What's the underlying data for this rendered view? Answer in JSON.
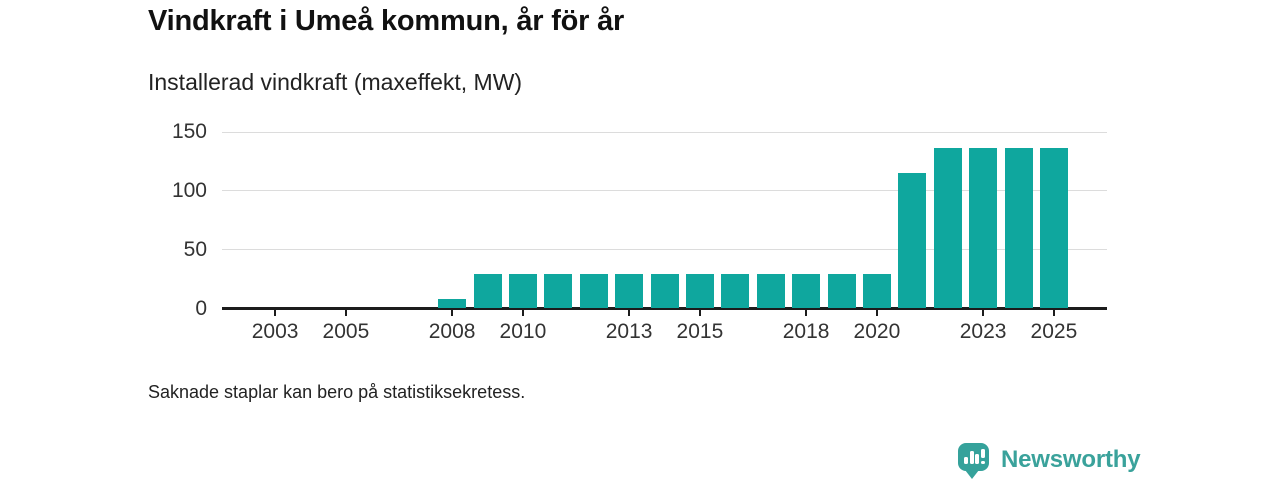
{
  "header": {
    "title": "Vindkraft i Umeå kommun, år för år",
    "subtitle": "Installerad vindkraft (maxeffekt, MW)"
  },
  "chart_data": {
    "type": "bar",
    "title": "Vindkraft i Umeå kommun, år för år",
    "subtitle": "Installerad vindkraft (maxeffekt, MW)",
    "unit": "MW",
    "categories": [
      2002,
      2003,
      2004,
      2005,
      2006,
      2007,
      2008,
      2009,
      2010,
      2011,
      2012,
      2013,
      2014,
      2015,
      2016,
      2017,
      2018,
      2019,
      2020,
      2021,
      2022,
      2023,
      2024,
      2025,
      2026
    ],
    "values": [
      null,
      null,
      null,
      null,
      null,
      null,
      8,
      29,
      29,
      29,
      29,
      29,
      29,
      29,
      29,
      29,
      29,
      29,
      29,
      115,
      136,
      136,
      136,
      136,
      null
    ],
    "x_tick_labels": [
      "2003",
      "2005",
      "2008",
      "2010",
      "2013",
      "2015",
      "2018",
      "2020",
      "2023",
      "2025"
    ],
    "y_ticks": [
      0,
      50,
      100,
      150
    ],
    "ylim": [
      0,
      150
    ],
    "grid": "horizontal-light",
    "legend": "none",
    "bar_color": "#0fa79e"
  },
  "footnote": {
    "text": "Saknade staplar kan bero på statistiksekretess."
  },
  "branding": {
    "logo_text": "Newsworthy",
    "logo_icon": "bar-chart-speech-bubble-icon"
  },
  "colors": {
    "bar": "#0fa79e",
    "brand_teal": "#3aa29b",
    "axis": "#1c1c1c",
    "grid": "#dcdcdc",
    "title_text": "#111111",
    "tick_text": "#333333"
  }
}
